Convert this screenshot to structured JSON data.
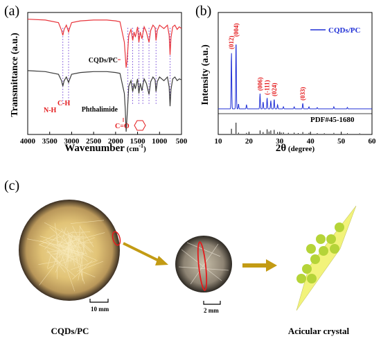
{
  "panels": {
    "a": "(a)",
    "b": "(b)",
    "c": "(c)"
  },
  "panel_a": {
    "xlabel_main": "Wavenumber",
    "xlabel_unit": " (cm",
    "xlabel_sup": "-1",
    "xlabel_close": ")",
    "ylabel": "Transmittance (a.u.)",
    "label_top": "CQDs/PC",
    "label_bottom": "Phthalimide",
    "ann_nh": "N-H",
    "ann_ch": "C-H",
    "ann_co": "C=O"
  },
  "panel_b": {
    "xlabel_main": "2θ",
    "xlabel_unit": " (degree)",
    "ylabel": "Intensity (a.u.)",
    "legend": "CQDs/PC",
    "pdf_label": "PDF#45-1680",
    "peak_labels": [
      "(012)",
      "(004)",
      "(006)",
      "(-111)",
      "(024)",
      "(033)"
    ]
  },
  "panel_c": {
    "scale1": "10 mm",
    "scale2": "2 mm",
    "caption_left": "CQDs/PC",
    "caption_right": "Acicular crystal"
  },
  "colors": {
    "top_series": "#e8343b",
    "bottom_series": "#3a3a3a",
    "xrd_series": "#1f2fd6",
    "annotation": "#e41a1c",
    "dashed": "#7b4fd8",
    "arrow": "#c39b14",
    "crystal": "#f2f37a",
    "dot": "#b5d438"
  },
  "chart_data": [
    {
      "type": "line",
      "panel": "a",
      "title": "",
      "xlabel": "Wavenumber (cm-1)",
      "ylabel": "Transmittance (a.u.)",
      "xlim": [
        4000,
        500
      ],
      "x_ticks": [
        4000,
        3500,
        3000,
        2500,
        2000,
        1500,
        1000,
        500
      ],
      "y_ticks_shown": false,
      "series": [
        {
          "name": "CQDs/PC",
          "x": [
            4000,
            3600,
            3300,
            3230,
            3200,
            3170,
            3120,
            3070,
            3050,
            3000,
            2800,
            2500,
            2200,
            2000,
            1900,
            1800,
            1780,
            1760,
            1740,
            1720,
            1700,
            1650,
            1610,
            1580,
            1550,
            1500,
            1470,
            1440,
            1400,
            1380,
            1350,
            1300,
            1240,
            1200,
            1150,
            1100,
            1080,
            1050,
            1000,
            900,
            820,
            780,
            760,
            740,
            700,
            650,
            600,
            550,
            500
          ],
          "y": [
            0.97,
            0.96,
            0.93,
            0.84,
            0.78,
            0.85,
            0.9,
            0.82,
            0.86,
            0.93,
            0.95,
            0.96,
            0.96,
            0.95,
            0.94,
            0.7,
            0.55,
            0.4,
            0.48,
            0.62,
            0.78,
            0.85,
            0.72,
            0.82,
            0.76,
            0.88,
            0.7,
            0.82,
            0.74,
            0.8,
            0.88,
            0.82,
            0.7,
            0.84,
            0.9,
            0.87,
            0.72,
            0.84,
            0.9,
            0.86,
            0.9,
            0.78,
            0.55,
            0.75,
            0.88,
            0.9,
            0.85,
            0.88,
            0.86
          ]
        },
        {
          "name": "Phthalimide",
          "x": [
            4000,
            3600,
            3300,
            3230,
            3200,
            3170,
            3120,
            3070,
            3050,
            3000,
            2800,
            2500,
            2200,
            2000,
            1900,
            1800,
            1780,
            1760,
            1740,
            1720,
            1700,
            1650,
            1610,
            1580,
            1550,
            1500,
            1470,
            1440,
            1400,
            1380,
            1350,
            1300,
            1240,
            1200,
            1150,
            1100,
            1080,
            1050,
            1000,
            900,
            820,
            780,
            760,
            740,
            700,
            650,
            600,
            550,
            500
          ],
          "y": [
            0.97,
            0.96,
            0.93,
            0.86,
            0.8,
            0.86,
            0.9,
            0.84,
            0.87,
            0.93,
            0.95,
            0.96,
            0.96,
            0.95,
            0.94,
            0.72,
            0.55,
            0.3,
            0.45,
            0.62,
            0.8,
            0.86,
            0.74,
            0.83,
            0.77,
            0.88,
            0.72,
            0.83,
            0.75,
            0.81,
            0.88,
            0.83,
            0.71,
            0.85,
            0.9,
            0.87,
            0.74,
            0.85,
            0.9,
            0.86,
            0.9,
            0.79,
            0.58,
            0.76,
            0.88,
            0.9,
            0.86,
            0.88,
            0.87
          ]
        }
      ],
      "annotations": [
        "N-H",
        "C-H",
        "C=O"
      ],
      "dashed_marker_x": [
        3200,
        3070,
        1720,
        1610,
        1470,
        1380,
        1240,
        1080,
        760
      ]
    },
    {
      "type": "line",
      "panel": "b",
      "title": "",
      "xlabel": "2θ (degree)",
      "ylabel": "Intensity (a.u.)",
      "xlim": [
        10,
        60
      ],
      "x_ticks": [
        10,
        20,
        30,
        40,
        50,
        60
      ],
      "y_ticks_shown": false,
      "legend": "top-right",
      "series": [
        {
          "name": "CQDs/PC",
          "peaks": [
            {
              "x": 14.3,
              "y": 0.82,
              "label": "(012)"
            },
            {
              "x": 15.8,
              "y": 1.0,
              "label": "(004)"
            },
            {
              "x": 16.6,
              "y": 0.07,
              "label": ""
            },
            {
              "x": 19.2,
              "y": 0.06,
              "label": ""
            },
            {
              "x": 23.6,
              "y": 0.22,
              "label": "(006)"
            },
            {
              "x": 24.6,
              "y": 0.1,
              "label": ""
            },
            {
              "x": 25.9,
              "y": 0.16,
              "label": "(-111)"
            },
            {
              "x": 27.1,
              "y": 0.12,
              "label": ""
            },
            {
              "x": 28.2,
              "y": 0.14,
              "label": "(024)"
            },
            {
              "x": 29.3,
              "y": 0.06,
              "label": ""
            },
            {
              "x": 31.2,
              "y": 0.03,
              "label": ""
            },
            {
              "x": 34.7,
              "y": 0.03,
              "label": ""
            },
            {
              "x": 37.5,
              "y": 0.08,
              "label": "(033)"
            },
            {
              "x": 39.5,
              "y": 0.03,
              "label": ""
            },
            {
              "x": 42.2,
              "y": 0.02,
              "label": ""
            },
            {
              "x": 47.6,
              "y": 0.03,
              "label": ""
            },
            {
              "x": 52.0,
              "y": 0.02,
              "label": ""
            }
          ]
        },
        {
          "name": "PDF#45-1680",
          "sticks": [
            {
              "x": 14.3,
              "h": 0.45
            },
            {
              "x": 15.8,
              "h": 1.0
            },
            {
              "x": 16.6,
              "h": 0.1
            },
            {
              "x": 19.2,
              "h": 0.08
            },
            {
              "x": 23.6,
              "h": 0.3
            },
            {
              "x": 24.6,
              "h": 0.15
            },
            {
              "x": 25.9,
              "h": 0.4
            },
            {
              "x": 26.5,
              "h": 0.2
            },
            {
              "x": 27.1,
              "h": 0.3
            },
            {
              "x": 28.2,
              "h": 0.35
            },
            {
              "x": 29.3,
              "h": 0.15
            },
            {
              "x": 30.5,
              "h": 0.1
            },
            {
              "x": 31.2,
              "h": 0.12
            },
            {
              "x": 32.8,
              "h": 0.08
            },
            {
              "x": 34.7,
              "h": 0.1
            },
            {
              "x": 36.0,
              "h": 0.06
            },
            {
              "x": 37.5,
              "h": 0.15
            },
            {
              "x": 39.5,
              "h": 0.08
            },
            {
              "x": 42.2,
              "h": 0.06
            },
            {
              "x": 44.5,
              "h": 0.05
            },
            {
              "x": 47.6,
              "h": 0.08
            },
            {
              "x": 52.0,
              "h": 0.05
            },
            {
              "x": 56.0,
              "h": 0.04
            }
          ]
        }
      ]
    }
  ]
}
